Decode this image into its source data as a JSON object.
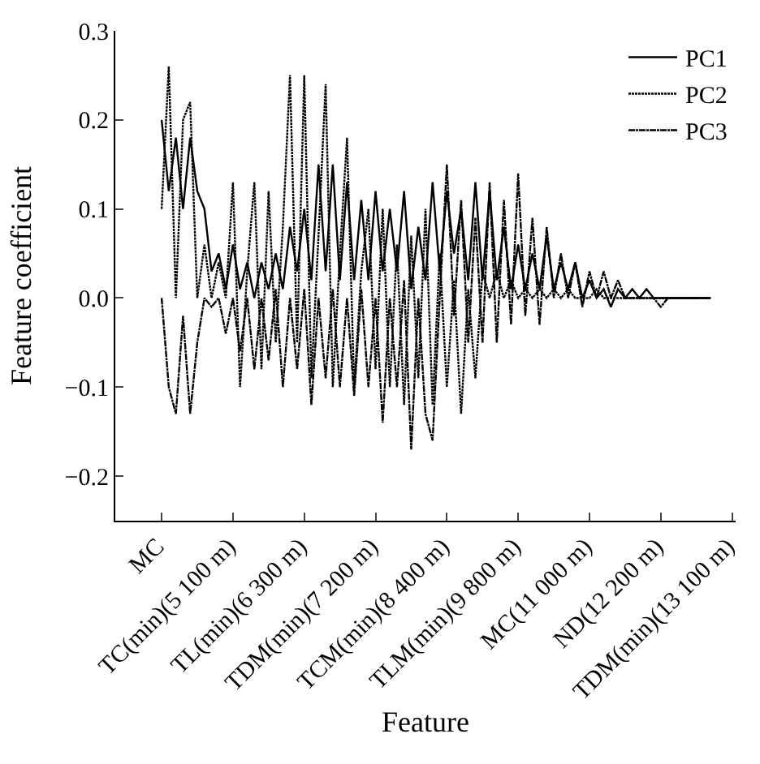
{
  "chart_data": {
    "type": "line",
    "xlabel": "Feature",
    "ylabel": "Feature coefficient",
    "categories": [
      null,
      null,
      null,
      null,
      null,
      null,
      "MC",
      null,
      null,
      null,
      null,
      null,
      null,
      null,
      null,
      null,
      "TC(min)(5 100 m)",
      null,
      null,
      null,
      null,
      null,
      null,
      null,
      null,
      null,
      "TL(min)(6 300 m)",
      null,
      null,
      null,
      null,
      null,
      null,
      null,
      null,
      null,
      "TDM(min)(7 200 m)",
      null,
      null,
      null,
      null,
      null,
      null,
      null,
      null,
      null,
      "TCM(min)(8 400 m)",
      null,
      null,
      null,
      null,
      null,
      null,
      null,
      null,
      null,
      "TLM(min)(9 800 m)",
      null,
      null,
      null,
      null,
      null,
      null,
      null,
      null,
      null,
      "MC(11 000 m)",
      null,
      null,
      null,
      null,
      null,
      null,
      null,
      null,
      null,
      "ND(12 200 m)",
      null,
      null,
      null,
      null,
      null,
      null,
      null,
      null,
      null,
      "TDM(min)(13 100 m)"
    ],
    "series": [
      {
        "name": "PC1",
        "color": "#000000",
        "line_style": "solid",
        "values": [
          null,
          null,
          null,
          null,
          null,
          null,
          0.2,
          0.12,
          0.18,
          0.1,
          0.18,
          0.12,
          0.1,
          0.03,
          0.05,
          0.01,
          0.06,
          0.01,
          0.04,
          0.0,
          0.04,
          0.01,
          0.05,
          0.01,
          0.08,
          0.03,
          0.1,
          0.02,
          0.15,
          0.03,
          0.15,
          0.02,
          0.13,
          0.02,
          0.11,
          0.02,
          0.12,
          0.03,
          0.1,
          0.03,
          0.12,
          0.01,
          0.08,
          0.02,
          0.13,
          0.03,
          0.12,
          0.05,
          0.1,
          0.02,
          0.13,
          0.02,
          0.12,
          0.02,
          0.08,
          0.01,
          0.06,
          0.01,
          0.05,
          0.01,
          0.07,
          0.01,
          0.04,
          0.01,
          0.04,
          0.0,
          0.02,
          0.0,
          0.01,
          -0.01,
          0.01,
          0.0,
          0.01,
          0.0,
          0.01,
          0.0,
          0.0,
          0.0,
          0.0,
          0.0,
          0.0,
          0.0,
          0.0,
          0.0,
          null,
          null,
          null
        ]
      },
      {
        "name": "PC2",
        "color": "#000000",
        "line_style": "dotted",
        "values": [
          null,
          null,
          null,
          null,
          null,
          null,
          0.1,
          0.26,
          0.0,
          0.2,
          0.22,
          0.0,
          0.06,
          0.0,
          0.04,
          0.0,
          0.13,
          -0.1,
          0.03,
          0.13,
          -0.08,
          0.12,
          -0.05,
          0.08,
          0.25,
          -0.05,
          0.25,
          -0.09,
          0.07,
          0.24,
          -0.1,
          0.05,
          0.18,
          -0.1,
          0.03,
          0.1,
          -0.08,
          0.1,
          -0.1,
          0.06,
          -0.12,
          0.07,
          -0.09,
          0.1,
          -0.12,
          0.05,
          -0.1,
          0.02,
          -0.13,
          0.01,
          -0.09,
          0.03,
          0.0,
          0.03,
          0.0,
          0.02,
          0.0,
          0.01,
          0.0,
          0.01,
          0.0,
          0.01,
          0.0,
          0.01,
          0.0,
          0.0,
          0.0,
          0.01,
          0.0,
          0.0,
          0.0,
          0.0,
          0.0,
          0.0,
          0.0,
          0.0,
          0.0,
          0.0,
          0.0,
          0.0,
          0.0,
          0.0,
          0.0,
          0.0,
          null,
          null,
          null
        ]
      },
      {
        "name": "PC3",
        "color": "#000000",
        "line_style": "dashdot",
        "values": [
          null,
          null,
          null,
          null,
          null,
          null,
          0.0,
          -0.1,
          -0.13,
          -0.02,
          -0.13,
          -0.05,
          0.0,
          -0.01,
          0.0,
          -0.04,
          0.0,
          -0.06,
          0.0,
          -0.08,
          0.0,
          -0.07,
          0.01,
          -0.1,
          0.0,
          -0.08,
          0.01,
          -0.12,
          0.0,
          -0.09,
          0.01,
          -0.1,
          0.0,
          -0.11,
          0.01,
          -0.1,
          0.0,
          -0.14,
          0.0,
          -0.1,
          0.02,
          -0.17,
          0.0,
          -0.13,
          -0.16,
          0.0,
          0.15,
          -0.02,
          0.11,
          -0.05,
          0.09,
          -0.05,
          0.13,
          -0.05,
          0.11,
          -0.03,
          0.14,
          -0.02,
          0.09,
          -0.03,
          0.08,
          0.0,
          0.05,
          0.0,
          0.04,
          -0.01,
          0.03,
          0.0,
          0.03,
          0.0,
          0.02,
          0.0,
          0.0,
          0.0,
          0.0,
          0.0,
          -0.01,
          0.0,
          0.0,
          0.0,
          0.0,
          0.0,
          0.0,
          0.0,
          null,
          null,
          null
        ]
      }
    ],
    "ylim": [
      -0.25,
      0.3
    ],
    "yticks": [
      {
        "value": -0.2,
        "label": "−0.2"
      },
      {
        "value": -0.1,
        "label": "−0.1"
      },
      {
        "value": 0,
        "label": "0.0"
      },
      0.1,
      0.2,
      0.3
    ],
    "legend": "top right",
    "marker": "none"
  }
}
